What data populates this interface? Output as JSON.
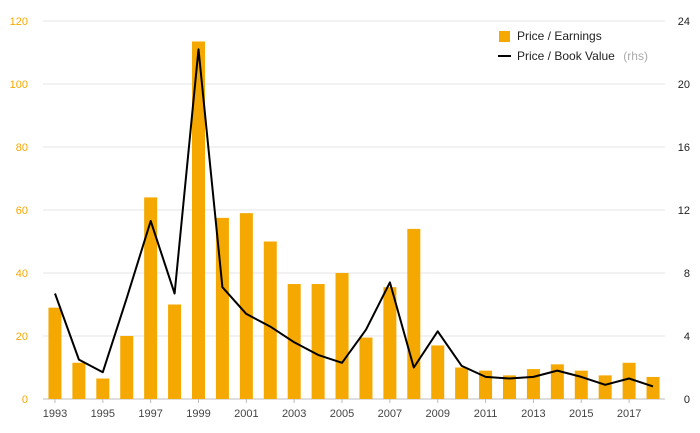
{
  "chart_data": {
    "type": "bar",
    "x": [
      1993,
      1994,
      1995,
      1996,
      1997,
      1998,
      1999,
      2000,
      2001,
      2002,
      2003,
      2004,
      2005,
      2006,
      2007,
      2008,
      2009,
      2010,
      2011,
      2012,
      2013,
      2014,
      2015,
      2016,
      2017,
      2018
    ],
    "x_tick_labels": [
      "1993",
      "1995",
      "1997",
      "1999",
      "2001",
      "2003",
      "2005",
      "2007",
      "2009",
      "2011",
      "2013",
      "2015",
      "2017"
    ],
    "series": [
      {
        "name": "Price / Earnings",
        "type": "bar",
        "axis": "left",
        "color": "#f5a800",
        "values": [
          29,
          11.5,
          6.5,
          20,
          64,
          30,
          113.5,
          57.5,
          59,
          50,
          36.5,
          36.5,
          40,
          19.5,
          35.5,
          54,
          17,
          10,
          9,
          7.5,
          9.5,
          11,
          9,
          7.5,
          11.5,
          7
        ]
      },
      {
        "name": "Price / Book Value",
        "name_suffix": "(rhs)",
        "type": "line",
        "axis": "right",
        "color": "#000000",
        "values": [
          6.7,
          2.5,
          1.7,
          6.4,
          11.3,
          6.7,
          22.2,
          7.1,
          5.4,
          4.6,
          3.6,
          2.8,
          2.3,
          4.4,
          7.4,
          2.0,
          4.3,
          2.1,
          1.4,
          1.3,
          1.4,
          1.8,
          1.4,
          0.9,
          1.3,
          0.8
        ]
      }
    ],
    "y_left": {
      "ylim": [
        0,
        120
      ],
      "ticks": [
        "0",
        "20",
        "40",
        "60",
        "80",
        "100",
        "120"
      ]
    },
    "y_right": {
      "ylim": [
        0,
        24
      ],
      "ticks": [
        "0",
        "4",
        "8",
        "12",
        "16",
        "20",
        "24"
      ]
    },
    "grid": true,
    "legend": {
      "placement": "top-right"
    }
  }
}
